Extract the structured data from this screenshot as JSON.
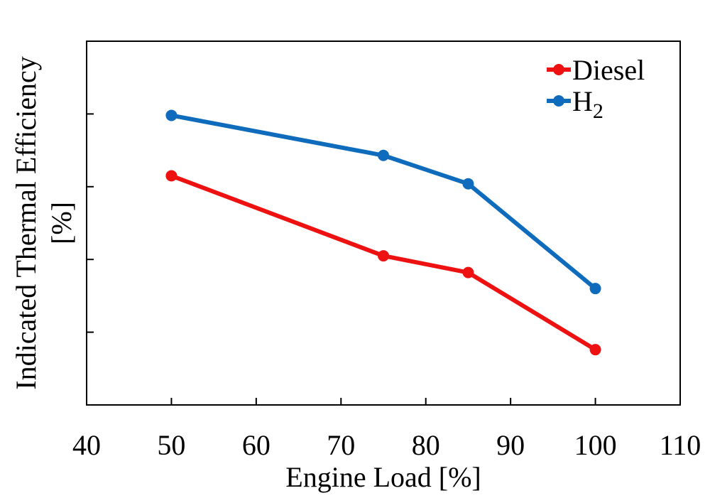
{
  "chart_data": {
    "type": "line",
    "title": "",
    "xlabel": "Engine Load [%]",
    "ylabel_line1": "Indicated Thermal Efficiency",
    "ylabel_line2": "[%]",
    "xlim": [
      40,
      110
    ],
    "ylim": [
      0,
      5
    ],
    "x_ticks": [
      40,
      50,
      60,
      70,
      80,
      90,
      100,
      110
    ],
    "y_ticks": [
      1,
      2,
      3,
      4
    ],
    "y_tick_labels_shown": false,
    "grid": false,
    "legend_position": "top-right",
    "series": [
      {
        "name": "Diesel",
        "name_main": "Diesel",
        "name_sub": "",
        "color": "#ee1111",
        "x": [
          50,
          75,
          85,
          100
        ],
        "y": [
          3.15,
          2.05,
          1.82,
          0.76
        ]
      },
      {
        "name": "H2",
        "name_main": "H",
        "name_sub": "2",
        "color": "#0f6cbd",
        "x": [
          50,
          75,
          85,
          100
        ],
        "y": [
          3.98,
          3.43,
          3.04,
          1.6
        ]
      }
    ]
  }
}
